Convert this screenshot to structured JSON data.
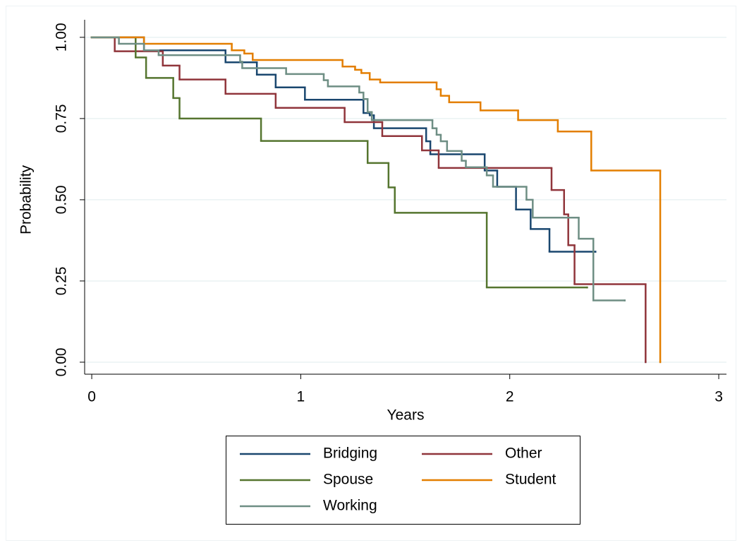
{
  "chart_data": {
    "type": "step",
    "x_label": "Years",
    "y_label": "Probability",
    "xlim": [
      -0.034,
      3.037
    ],
    "xticks": [
      0,
      1,
      2,
      3
    ],
    "ylim": [
      -0.037,
      1.054
    ],
    "yticks": [
      {
        "value": 0,
        "label": "0.00"
      },
      {
        "value": 0.25,
        "label": "0.25"
      },
      {
        "value": 0.5,
        "label": "0.50"
      },
      {
        "value": 0.75,
        "label": "0.75"
      },
      {
        "value": 1,
        "label": "1.00"
      }
    ],
    "grid": true,
    "legend_position": "bottom",
    "series": [
      {
        "name": "Bridging",
        "color": "#1a476f",
        "x": [
          0,
          0.25,
          0.64,
          0.79,
          0.88,
          1.02,
          1.3,
          1.33,
          1.35,
          1.6,
          1.62,
          1.88,
          1.94,
          2.03,
          2.1,
          2.19,
          2.41
        ],
        "values": [
          1,
          0.96,
          0.923,
          0.885,
          0.846,
          0.808,
          0.767,
          0.76,
          0.72,
          0.68,
          0.64,
          0.59,
          0.54,
          0.47,
          0.41,
          0.34,
          0.34
        ]
      },
      {
        "name": "Other",
        "color": "#90353b",
        "x": [
          0,
          0.11,
          0.34,
          0.42,
          0.64,
          0.88,
          1.21,
          1.39,
          1.58,
          1.66,
          2.2,
          2.26,
          2.28,
          2.31,
          2.65
        ],
        "values": [
          1,
          0.957,
          0.913,
          0.87,
          0.826,
          0.783,
          0.739,
          0.696,
          0.652,
          0.598,
          0.53,
          0.455,
          0.36,
          0.24,
          0
        ]
      },
      {
        "name": "Spouse",
        "color": "#55752f",
        "x": [
          0,
          0.21,
          0.26,
          0.39,
          0.42,
          0.81,
          1.32,
          1.42,
          1.45,
          1.89,
          2.37
        ],
        "values": [
          1,
          0.938,
          0.875,
          0.813,
          0.75,
          0.681,
          0.613,
          0.538,
          0.46,
          0.23,
          0.23
        ]
      },
      {
        "name": "Student",
        "color": "#e37e00",
        "x": [
          0,
          0.25,
          0.67,
          0.73,
          0.77,
          1.2,
          1.26,
          1.29,
          1.33,
          1.38,
          1.65,
          1.67,
          1.71,
          1.86,
          2.04,
          2.23,
          2.39,
          2.72
        ],
        "values": [
          1,
          0.98,
          0.96,
          0.95,
          0.93,
          0.91,
          0.9,
          0.89,
          0.87,
          0.861,
          0.84,
          0.82,
          0.8,
          0.775,
          0.745,
          0.71,
          0.59,
          0
        ]
      },
      {
        "name": "Working",
        "color": "#6e8e84",
        "x": [
          0,
          0.13,
          0.25,
          0.32,
          0.71,
          0.72,
          0.93,
          1.11,
          1.13,
          1.28,
          1.3,
          1.32,
          1.34,
          1.63,
          1.65,
          1.67,
          1.7,
          1.77,
          1.79,
          1.89,
          1.92,
          2.08,
          2.11,
          2.33,
          2.4,
          2.55
        ],
        "values": [
          1,
          0.98,
          0.96,
          0.945,
          0.925,
          0.905,
          0.887,
          0.868,
          0.849,
          0.83,
          0.81,
          0.77,
          0.745,
          0.72,
          0.7,
          0.68,
          0.65,
          0.62,
          0.6,
          0.575,
          0.54,
          0.5,
          0.445,
          0.38,
          0.19,
          0.19
        ]
      }
    ]
  }
}
